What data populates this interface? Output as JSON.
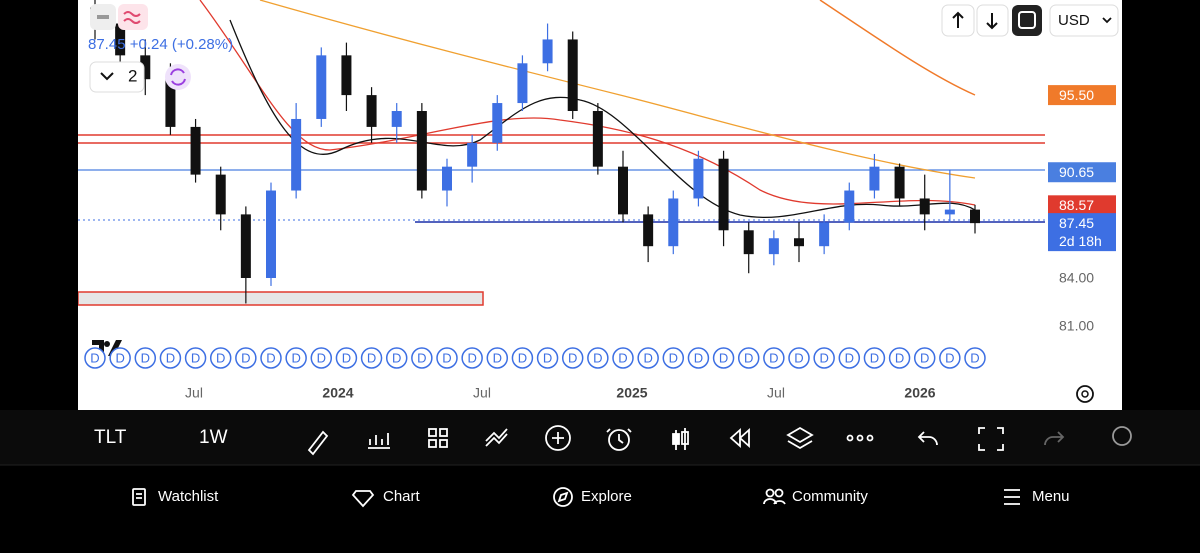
{
  "header": {
    "quote": "87.45 +0.24 (+0.28%)",
    "layout_count": "2",
    "currency": "USD"
  },
  "chart": {
    "type": "candlestick",
    "ylim": [
      75.7,
      101.48
    ],
    "up_color": "#3d6fe3",
    "down_color": "#111111",
    "dividend_marker": "D",
    "price_labels": [
      {
        "value": 95.5,
        "label": "95.50",
        "color": "#f07a2a"
      },
      {
        "value": 90.65,
        "label": "90.65",
        "color": "#4a7fe0"
      },
      {
        "value": 88.57,
        "label": "88.57",
        "color": "#e03a2e"
      },
      {
        "value": 87.45,
        "label": "87.45",
        "color": "#3d6fe3"
      },
      {
        "value": 84,
        "label": "84.00"
      },
      {
        "value": 81,
        "label": "81.00"
      }
    ],
    "countdown": "2d 18h",
    "time_labels": [
      "Jul",
      "2024",
      "Jul",
      "2025",
      "Jul",
      "2026"
    ],
    "candles": [
      [
        101,
        102.5,
        99,
        100
      ],
      [
        100,
        101,
        97,
        98
      ],
      [
        98,
        99,
        95.5,
        96.5
      ],
      [
        96.5,
        97.5,
        93,
        93.5
      ],
      [
        93.5,
        94,
        90,
        90.5
      ],
      [
        90.5,
        91,
        87,
        88
      ],
      [
        88,
        88.5,
        82.4,
        84
      ],
      [
        84,
        90,
        83.5,
        89.5
      ],
      [
        89.5,
        95,
        89,
        94
      ],
      [
        94,
        98.5,
        93.5,
        98
      ],
      [
        98,
        98.8,
        94.5,
        95.5
      ],
      [
        95.5,
        96,
        92.5,
        93.5
      ],
      [
        93.5,
        95,
        92.5,
        94.5
      ],
      [
        94.5,
        95,
        89,
        89.5
      ],
      [
        89.5,
        91.5,
        88.5,
        91
      ],
      [
        91,
        93,
        90,
        92.5
      ],
      [
        92.5,
        95.5,
        92,
        95
      ],
      [
        95,
        98,
        94.5,
        97.5
      ],
      [
        97.5,
        100,
        97,
        99
      ],
      [
        99,
        99.5,
        94,
        94.5
      ],
      [
        94.5,
        95,
        90.5,
        91
      ],
      [
        91,
        92,
        87.5,
        88
      ],
      [
        88,
        88.5,
        85,
        86
      ],
      [
        86,
        89.5,
        85.5,
        89
      ],
      [
        89,
        92,
        88.5,
        91.5
      ],
      [
        91.5,
        92,
        86,
        87
      ],
      [
        87,
        87.5,
        84.3,
        85.5
      ],
      [
        85.5,
        87,
        84.8,
        86.5
      ],
      [
        86.5,
        87.5,
        85,
        86
      ],
      [
        86,
        88,
        85.5,
        87.5
      ],
      [
        87.5,
        90,
        87,
        89.5
      ],
      [
        89.5,
        91.8,
        89,
        91
      ],
      [
        91,
        91.2,
        88.5,
        89
      ],
      [
        89,
        90.5,
        87,
        88
      ],
      [
        88,
        90.8,
        87.5,
        88.3
      ],
      [
        88.3,
        88.6,
        86.8,
        87.45
      ]
    ]
  },
  "toolbar": {
    "symbol": "TLT",
    "interval": "1W"
  },
  "nav": [
    "Watchlist",
    "Chart",
    "Explore",
    "Community",
    "Menu"
  ]
}
